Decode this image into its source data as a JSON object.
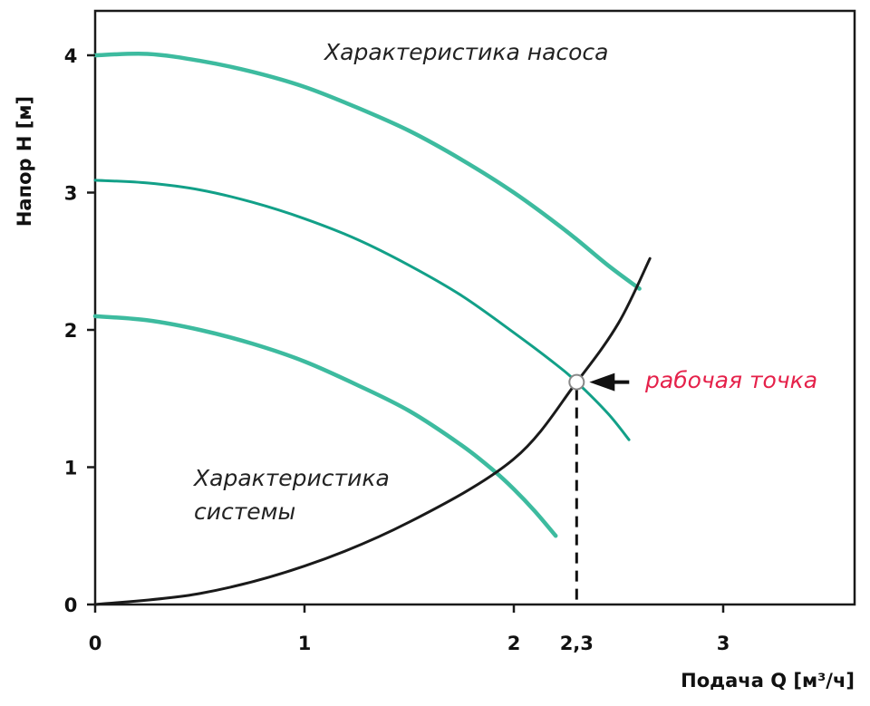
{
  "chart_data": {
    "type": "line",
    "xlabel": "Подача Q  [м³/ч]",
    "ylabel": "Напор H [м]",
    "xlim": [
      0,
      3.63
    ],
    "ylim": [
      0,
      4.3
    ],
    "x_ticks": [
      "0",
      "1",
      "2",
      "3"
    ],
    "y_ticks": [
      "0",
      "1",
      "2",
      "3",
      "4"
    ],
    "grid": false,
    "series": [
      {
        "key": "pump_high",
        "color": "#3dbb9f",
        "x": [
          0,
          0.25,
          0.5,
          0.75,
          1.0,
          1.25,
          1.5,
          1.75,
          2.0,
          2.25,
          2.45,
          2.6
        ],
        "y": [
          4.0,
          4.01,
          3.96,
          3.88,
          3.77,
          3.62,
          3.45,
          3.24,
          3.0,
          2.72,
          2.47,
          2.3
        ]
      },
      {
        "key": "pump_mid",
        "color": "#12a088",
        "x": [
          0,
          0.25,
          0.5,
          0.75,
          1.0,
          1.25,
          1.5,
          1.75,
          2.0,
          2.2,
          2.3,
          2.45,
          2.55
        ],
        "y": [
          3.09,
          3.07,
          3.02,
          2.93,
          2.81,
          2.66,
          2.47,
          2.25,
          1.98,
          1.75,
          1.62,
          1.39,
          1.2
        ]
      },
      {
        "key": "pump_low",
        "color": "#3dbb9f",
        "x": [
          0,
          0.25,
          0.5,
          0.75,
          1.0,
          1.25,
          1.5,
          1.75,
          1.9,
          2.0,
          2.1,
          2.2
        ],
        "y": [
          2.1,
          2.07,
          2.0,
          1.9,
          1.77,
          1.6,
          1.41,
          1.16,
          0.98,
          0.84,
          0.68,
          0.5
        ]
      },
      {
        "key": "system",
        "color": "#1a1a1a",
        "x": [
          0,
          0.5,
          1.0,
          1.5,
          2.0,
          2.3,
          2.5,
          2.65
        ],
        "y": [
          0,
          0.08,
          0.28,
          0.6,
          1.06,
          1.62,
          2.05,
          2.52
        ]
      }
    ],
    "annotations": {
      "pump_curve_label": "Характеристика насоса",
      "system_curve_label_line1": "Характеристика",
      "system_curve_label_line2": "системы",
      "operating_point_label": "рабочая точка",
      "operating_point_value": "2,3"
    },
    "operating_point": {
      "x": 2.3,
      "y": 1.62
    },
    "colors": {
      "axis": "#1a1a1a",
      "highlight": "#e5214a",
      "marker_fill": "#ffffff",
      "marker_stroke": "#888888"
    }
  }
}
